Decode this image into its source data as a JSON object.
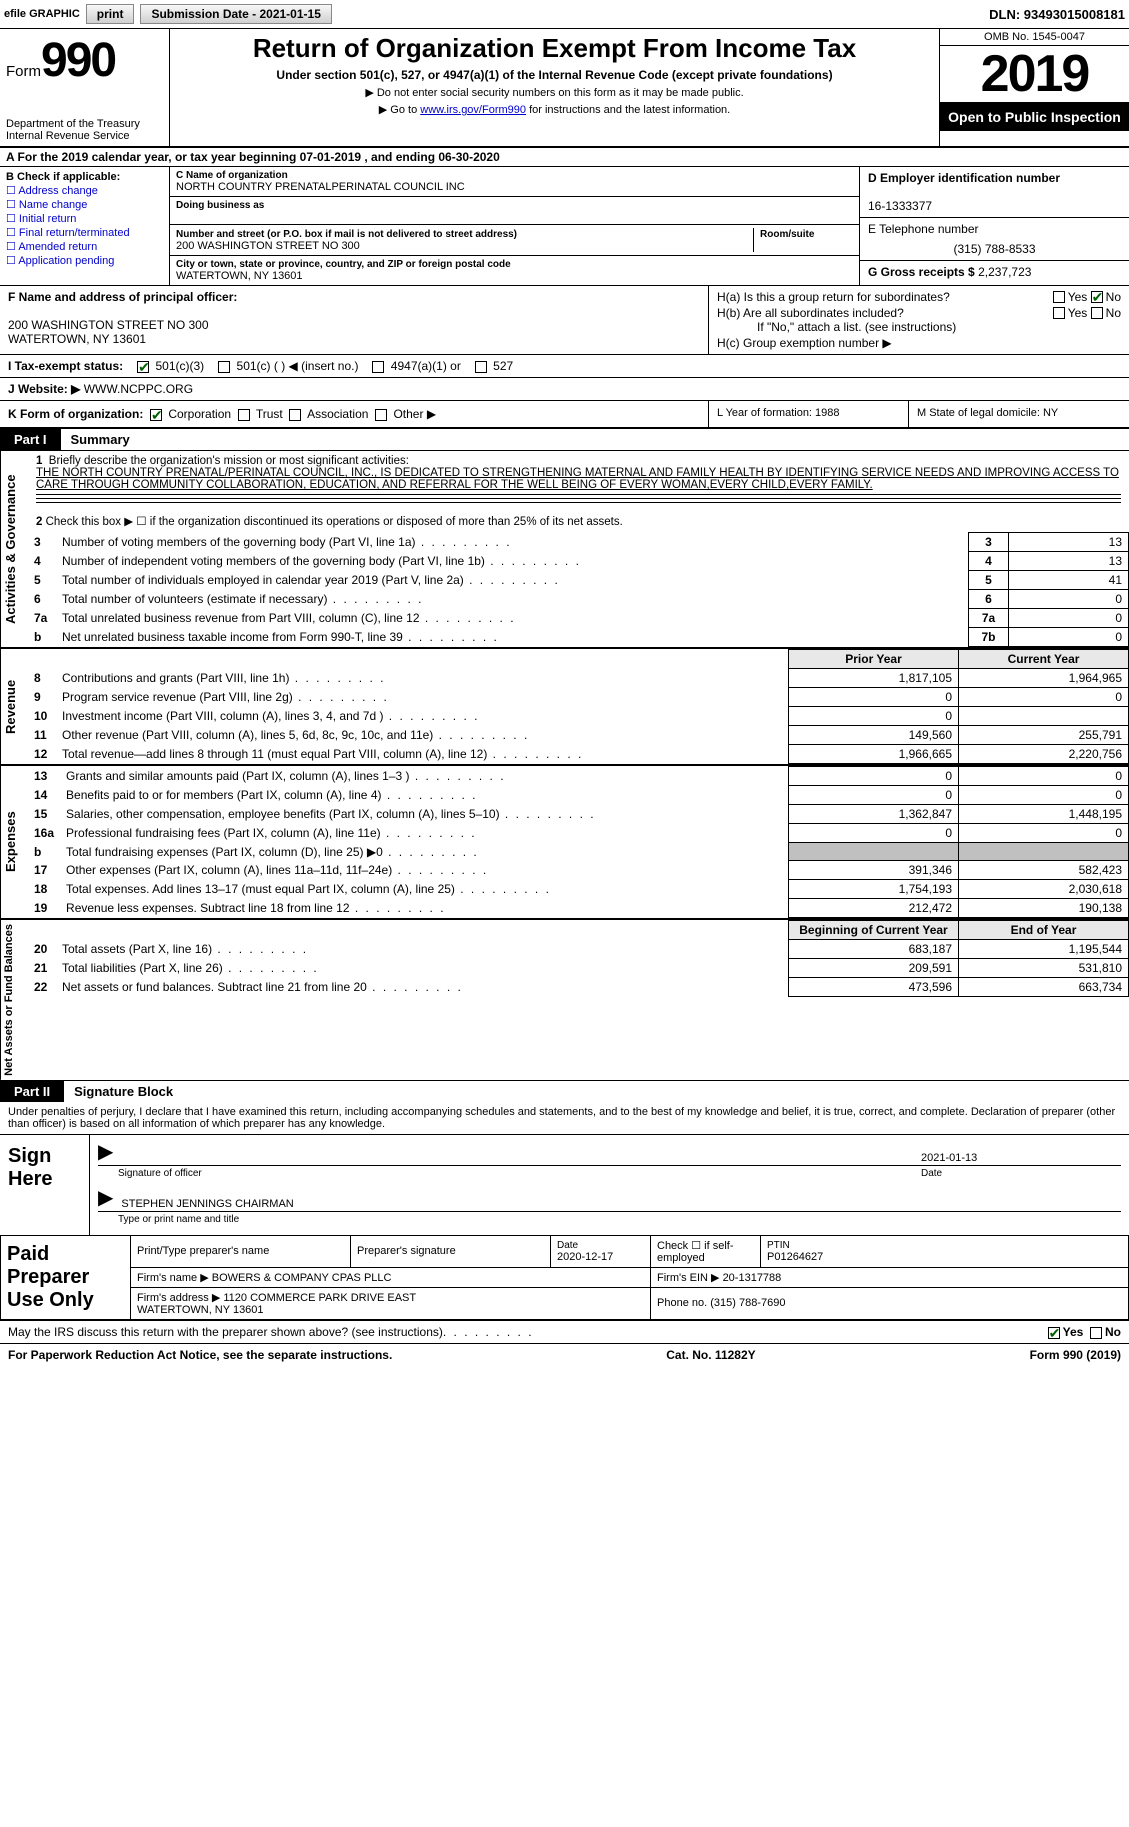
{
  "topbar": {
    "efile_label": "efile GRAPHIC",
    "print_btn": "print",
    "submission_label": "Submission Date - 2021-01-15",
    "dln": "DLN: 93493015008181"
  },
  "header": {
    "form_word": "Form",
    "form_number": "990",
    "dept": "Department of the Treasury\nInternal Revenue Service",
    "title": "Return of Organization Exempt From Income Tax",
    "subtitle": "Under section 501(c), 527, or 4947(a)(1) of the Internal Revenue Code (except private foundations)",
    "note1": "▶ Do not enter social security numbers on this form as it may be made public.",
    "note2_pre": "▶ Go to ",
    "note2_link": "www.irs.gov/Form990",
    "note2_post": " for instructions and the latest information.",
    "omb": "OMB No. 1545-0047",
    "tax_year": "2019",
    "open_public": "Open to Public Inspection"
  },
  "line_a": "A For the 2019 calendar year, or tax year beginning 07-01-2019    , and ending 06-30-2020",
  "box_b": {
    "header": "B Check if applicable:",
    "items": [
      "Address change",
      "Name change",
      "Initial return",
      "Final return/terminated",
      "Amended return",
      "Application pending"
    ]
  },
  "box_c": {
    "name_lbl": "C Name of organization",
    "name": "NORTH COUNTRY PRENATALPERINATAL COUNCIL INC",
    "dba_lbl": "Doing business as",
    "dba": "",
    "addr_lbl": "Number and street (or P.O. box if mail is not delivered to street address)",
    "room_lbl": "Room/suite",
    "addr": "200 WASHINGTON STREET NO 300",
    "city_lbl": "City or town, state or province, country, and ZIP or foreign postal code",
    "city": "WATERTOWN, NY  13601"
  },
  "box_d": {
    "ein_lbl": "D Employer identification number",
    "ein": "16-1333377",
    "phone_lbl": "E Telephone number",
    "phone": "(315) 788-8533",
    "gross_lbl": "G Gross receipts $",
    "gross": "2,237,723"
  },
  "box_f": {
    "lbl": "F  Name and address of principal officer:",
    "line1": "200 WASHINGTON STREET NO 300",
    "line2": "WATERTOWN, NY  13601"
  },
  "box_h": {
    "ha": "H(a)  Is this a group return for subordinates?",
    "hb": "H(b)  Are all subordinates included?",
    "hb_note": "If \"No,\" attach a list. (see instructions)",
    "hc": "H(c)  Group exemption number ▶",
    "yes": "Yes",
    "no": "No"
  },
  "tax_status": {
    "lbl": "I  Tax-exempt status:",
    "o1": "501(c)(3)",
    "o2": "501(c) (  ) ◀ (insert no.)",
    "o3": "4947(a)(1) or",
    "o4": "527"
  },
  "website": {
    "lbl": "J  Website: ▶",
    "val": "WWW.NCPPC.ORG"
  },
  "row_k": {
    "lbl": "K Form of organization:",
    "o1": "Corporation",
    "o2": "Trust",
    "o3": "Association",
    "o4": "Other ▶"
  },
  "row_l": "L Year of formation: 1988",
  "row_m": "M State of legal domicile: NY",
  "part1": {
    "label": "Part I",
    "title": "Summary",
    "q1_lbl": "1",
    "q1": "Briefly describe the organization's mission or most significant activities:",
    "mission": "THE NORTH COUNTRY PRENATAL/PERINATAL COUNCIL, INC., IS DEDICATED TO STRENGTHENING MATERNAL AND FAMILY HEALTH BY IDENTIFYING SERVICE NEEDS AND IMPROVING ACCESS TO CARE THROUGH COMMUNITY COLLABORATION, EDUCATION, AND REFERRAL FOR THE WELL BEING OF EVERY WOMAN,EVERY CHILD,EVERY FAMILY.",
    "q2": "Check this box ▶ ☐  if the organization discontinued its operations or disposed of more than 25% of its net assets.",
    "lines": [
      {
        "n": "3",
        "t": "Number of voting members of the governing body (Part VI, line 1a)",
        "box": "3",
        "v": "13"
      },
      {
        "n": "4",
        "t": "Number of independent voting members of the governing body (Part VI, line 1b)",
        "box": "4",
        "v": "13"
      },
      {
        "n": "5",
        "t": "Total number of individuals employed in calendar year 2019 (Part V, line 2a)",
        "box": "5",
        "v": "41"
      },
      {
        "n": "6",
        "t": "Total number of volunteers (estimate if necessary)",
        "box": "6",
        "v": "0"
      },
      {
        "n": "7a",
        "t": "Total unrelated business revenue from Part VIII, column (C), line 12",
        "box": "7a",
        "v": "0"
      },
      {
        "n": "b",
        "t": "Net unrelated business taxable income from Form 990-T, line 39",
        "box": "7b",
        "v": "0"
      }
    ]
  },
  "revenue": {
    "vlabel": "Revenue",
    "hdr_prior": "Prior Year",
    "hdr_curr": "Current Year",
    "rows": [
      {
        "n": "8",
        "t": "Contributions and grants (Part VIII, line 1h)",
        "p": "1,817,105",
        "c": "1,964,965"
      },
      {
        "n": "9",
        "t": "Program service revenue (Part VIII, line 2g)",
        "p": "0",
        "c": "0"
      },
      {
        "n": "10",
        "t": "Investment income (Part VIII, column (A), lines 3, 4, and 7d )",
        "p": "0",
        "c": ""
      },
      {
        "n": "11",
        "t": "Other revenue (Part VIII, column (A), lines 5, 6d, 8c, 9c, 10c, and 11e)",
        "p": "149,560",
        "c": "255,791"
      },
      {
        "n": "12",
        "t": "Total revenue—add lines 8 through 11 (must equal Part VIII, column (A), line 12)",
        "p": "1,966,665",
        "c": "2,220,756"
      }
    ]
  },
  "expenses": {
    "vlabel": "Expenses",
    "rows": [
      {
        "n": "13",
        "t": "Grants and similar amounts paid (Part IX, column (A), lines 1–3 )",
        "p": "0",
        "c": "0"
      },
      {
        "n": "14",
        "t": "Benefits paid to or for members (Part IX, column (A), line 4)",
        "p": "0",
        "c": "0"
      },
      {
        "n": "15",
        "t": "Salaries, other compensation, employee benefits (Part IX, column (A), lines 5–10)",
        "p": "1,362,847",
        "c": "1,448,195"
      },
      {
        "n": "16a",
        "t": "Professional fundraising fees (Part IX, column (A), line 11e)",
        "p": "0",
        "c": "0"
      },
      {
        "n": "b",
        "t": "Total fundraising expenses (Part IX, column (D), line 25) ▶0",
        "p": "",
        "c": "",
        "shade": true
      },
      {
        "n": "17",
        "t": "Other expenses (Part IX, column (A), lines 11a–11d, 11f–24e)",
        "p": "391,346",
        "c": "582,423"
      },
      {
        "n": "18",
        "t": "Total expenses. Add lines 13–17 (must equal Part IX, column (A), line 25)",
        "p": "1,754,193",
        "c": "2,030,618"
      },
      {
        "n": "19",
        "t": "Revenue less expenses. Subtract line 18 from line 12",
        "p": "212,472",
        "c": "190,138"
      }
    ]
  },
  "netassets": {
    "vlabel": "Net Assets or Fund Balances",
    "hdr_begin": "Beginning of Current Year",
    "hdr_end": "End of Year",
    "rows": [
      {
        "n": "20",
        "t": "Total assets (Part X, line 16)",
        "p": "683,187",
        "c": "1,195,544"
      },
      {
        "n": "21",
        "t": "Total liabilities (Part X, line 26)",
        "p": "209,591",
        "c": "531,810"
      },
      {
        "n": "22",
        "t": "Net assets or fund balances. Subtract line 21 from line 20",
        "p": "473,596",
        "c": "663,734"
      }
    ]
  },
  "part2": {
    "label": "Part II",
    "title": "Signature Block",
    "perjury": "Under penalties of perjury, I declare that I have examined this return, including accompanying schedules and statements, and to the best of my knowledge and belief, it is true, correct, and complete. Declaration of preparer (other than officer) is based on all information of which preparer has any knowledge.",
    "sign_here": "Sign Here",
    "sig_date": "2021-01-13",
    "sig_officer_cap": "Signature of officer",
    "date_cap": "Date",
    "officer_name": "STEPHEN JENNINGS CHAIRMAN",
    "officer_cap": "Type or print name and title"
  },
  "preparer": {
    "label": "Paid Preparer Use Only",
    "h1": "Print/Type preparer's name",
    "h2": "Preparer's signature",
    "h3": "Date",
    "date": "2020-12-17",
    "h4": "Check ☐ if self-employed",
    "h5": "PTIN",
    "ptin": "P01264627",
    "firm_lbl": "Firm's name    ▶",
    "firm": "BOWERS & COMPANY CPAS PLLC",
    "ein_lbl": "Firm's EIN ▶",
    "ein": "20-1317788",
    "addr_lbl": "Firm's address ▶",
    "addr": "1120 COMMERCE PARK DRIVE EAST\nWATERTOWN, NY  13601",
    "phone_lbl": "Phone no.",
    "phone": "(315) 788-7690"
  },
  "footer": {
    "discuss": "May the IRS discuss this return with the preparer shown above? (see instructions)",
    "yes": "Yes",
    "no": "No",
    "paperwork": "For Paperwork Reduction Act Notice, see the separate instructions.",
    "cat": "Cat. No. 11282Y",
    "form": "Form 990 (2019)"
  },
  "colors": {
    "link": "#0000cc",
    "shade": "#c0c0c0",
    "header_shade": "#e8e8e8"
  }
}
